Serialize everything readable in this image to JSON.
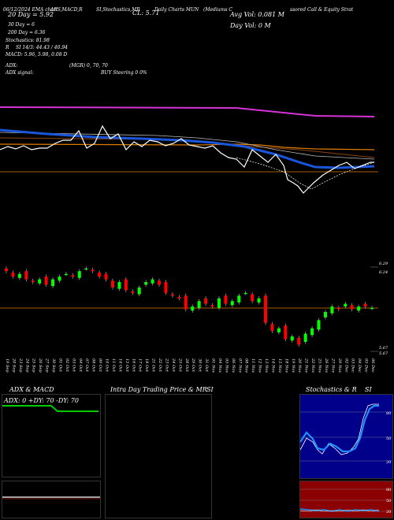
{
  "header": {
    "date_line": "06/12/2024 EMA chart",
    "indicators": "AES,MACD,R",
    "stoch_label": "SI,Stochastics,MR",
    "cl_label": "CL: 5.71",
    "symbol_label": "Daily Charts MUN",
    "company": "(Mediums C",
    "company2": "ssored Call & Equity Strat",
    "avg_vol": "Avg Vol: 0.081 M",
    "day_vol": "Day Vol: 0   M",
    "ma20": "20 Day = 5.92",
    "ma30": "30 Day = 6",
    "ma200": "200 Day = 6.36",
    "stochastics": "Stochastics: 81.98",
    "r_line": "R",
    "si_line": "SI 14/3: 44.43 / 40.94",
    "macd_line": "MACD: 5.96, 5.98, 0.08 D",
    "adx_line": "ADX:",
    "mgr_line": "(MGR) 0, 70, 70",
    "adx_signal": "ADX signal:",
    "buy_line": "BUY Steering 0 0%"
  },
  "price_panel": {
    "right_labels": [
      "6.29",
      "6.24",
      "5.67",
      "5.67"
    ]
  },
  "x_dates": [
    "19 Sep",
    "20 Sep",
    "23 Sep",
    "24 Sep",
    "25 Sep",
    "26 Sep",
    "27 Sep",
    "30 Sep",
    "01 Oct",
    "02 Oct",
    "03 Oct",
    "04 Oct",
    "07 Oct",
    "08 Oct",
    "09 Oct",
    "10 Oct",
    "11 Oct",
    "14 Oct",
    "15 Oct",
    "16 Oct",
    "17 Oct",
    "18 Oct",
    "21 Oct",
    "22 Oct",
    "23 Oct",
    "24 Oct",
    "25 Oct",
    "28 Oct",
    "29 Oct",
    "30 Oct",
    "31 Oct",
    "01 Nov",
    "04 Nov",
    "05 Nov",
    "06 Nov",
    "07 Nov",
    "08 Nov",
    "11 Nov",
    "12 Nov",
    "13 Nov",
    "14 Nov",
    "15 Nov",
    "18 Nov",
    "19 Nov",
    "20 Nov",
    "21 Nov",
    "22 Nov",
    "25 Nov",
    "26 Nov",
    "27 Nov",
    "29 Nov",
    "02 Dec",
    "03 Dec",
    "04 Dec",
    "05 Dec",
    "06 Dec"
  ],
  "bottom": {
    "adx_title": "ADX & MACD",
    "adx_values": "ADX: 0  +DY: 70  -DY: 70",
    "intra_title": "Intra Day Trading Price & MR",
    "intra_si": "SI",
    "stoch_title": "Stochastics & R",
    "stoch_si": "SI",
    "stoch_axis": [
      "80",
      "50",
      "20"
    ],
    "si_axis": [
      "80",
      "50",
      "20"
    ]
  },
  "colors": {
    "up": "#00ff00",
    "down": "#ff0000",
    "ma20": "#ffffff",
    "ma_blue": "#1a56db",
    "ma_orange": "#e07b00",
    "ma_magenta": "#d633d6"
  },
  "chart_data": {
    "type": "candlestick",
    "candles_close": [
      6.26,
      6.22,
      6.24,
      6.2,
      6.18,
      6.2,
      6.16,
      6.2,
      6.22,
      6.24,
      6.22,
      6.26,
      6.28,
      6.26,
      6.22,
      6.2,
      6.14,
      6.18,
      6.12,
      6.1,
      6.14,
      6.18,
      6.2,
      6.16,
      6.1,
      6.08,
      6.06,
      5.98,
      6.0,
      6.04,
      6.02,
      6.0,
      6.06,
      6.02,
      6.04,
      6.08,
      6.1,
      6.04,
      6.06,
      5.88,
      5.82,
      5.84,
      5.76,
      5.78,
      5.72,
      5.8,
      5.84,
      5.9,
      5.96,
      6.0,
      5.98,
      6.02,
      5.98,
      6.0,
      6.0,
      5.99
    ],
    "ma_series": [
      "20 Day",
      "30 Day",
      "200 Day"
    ]
  }
}
